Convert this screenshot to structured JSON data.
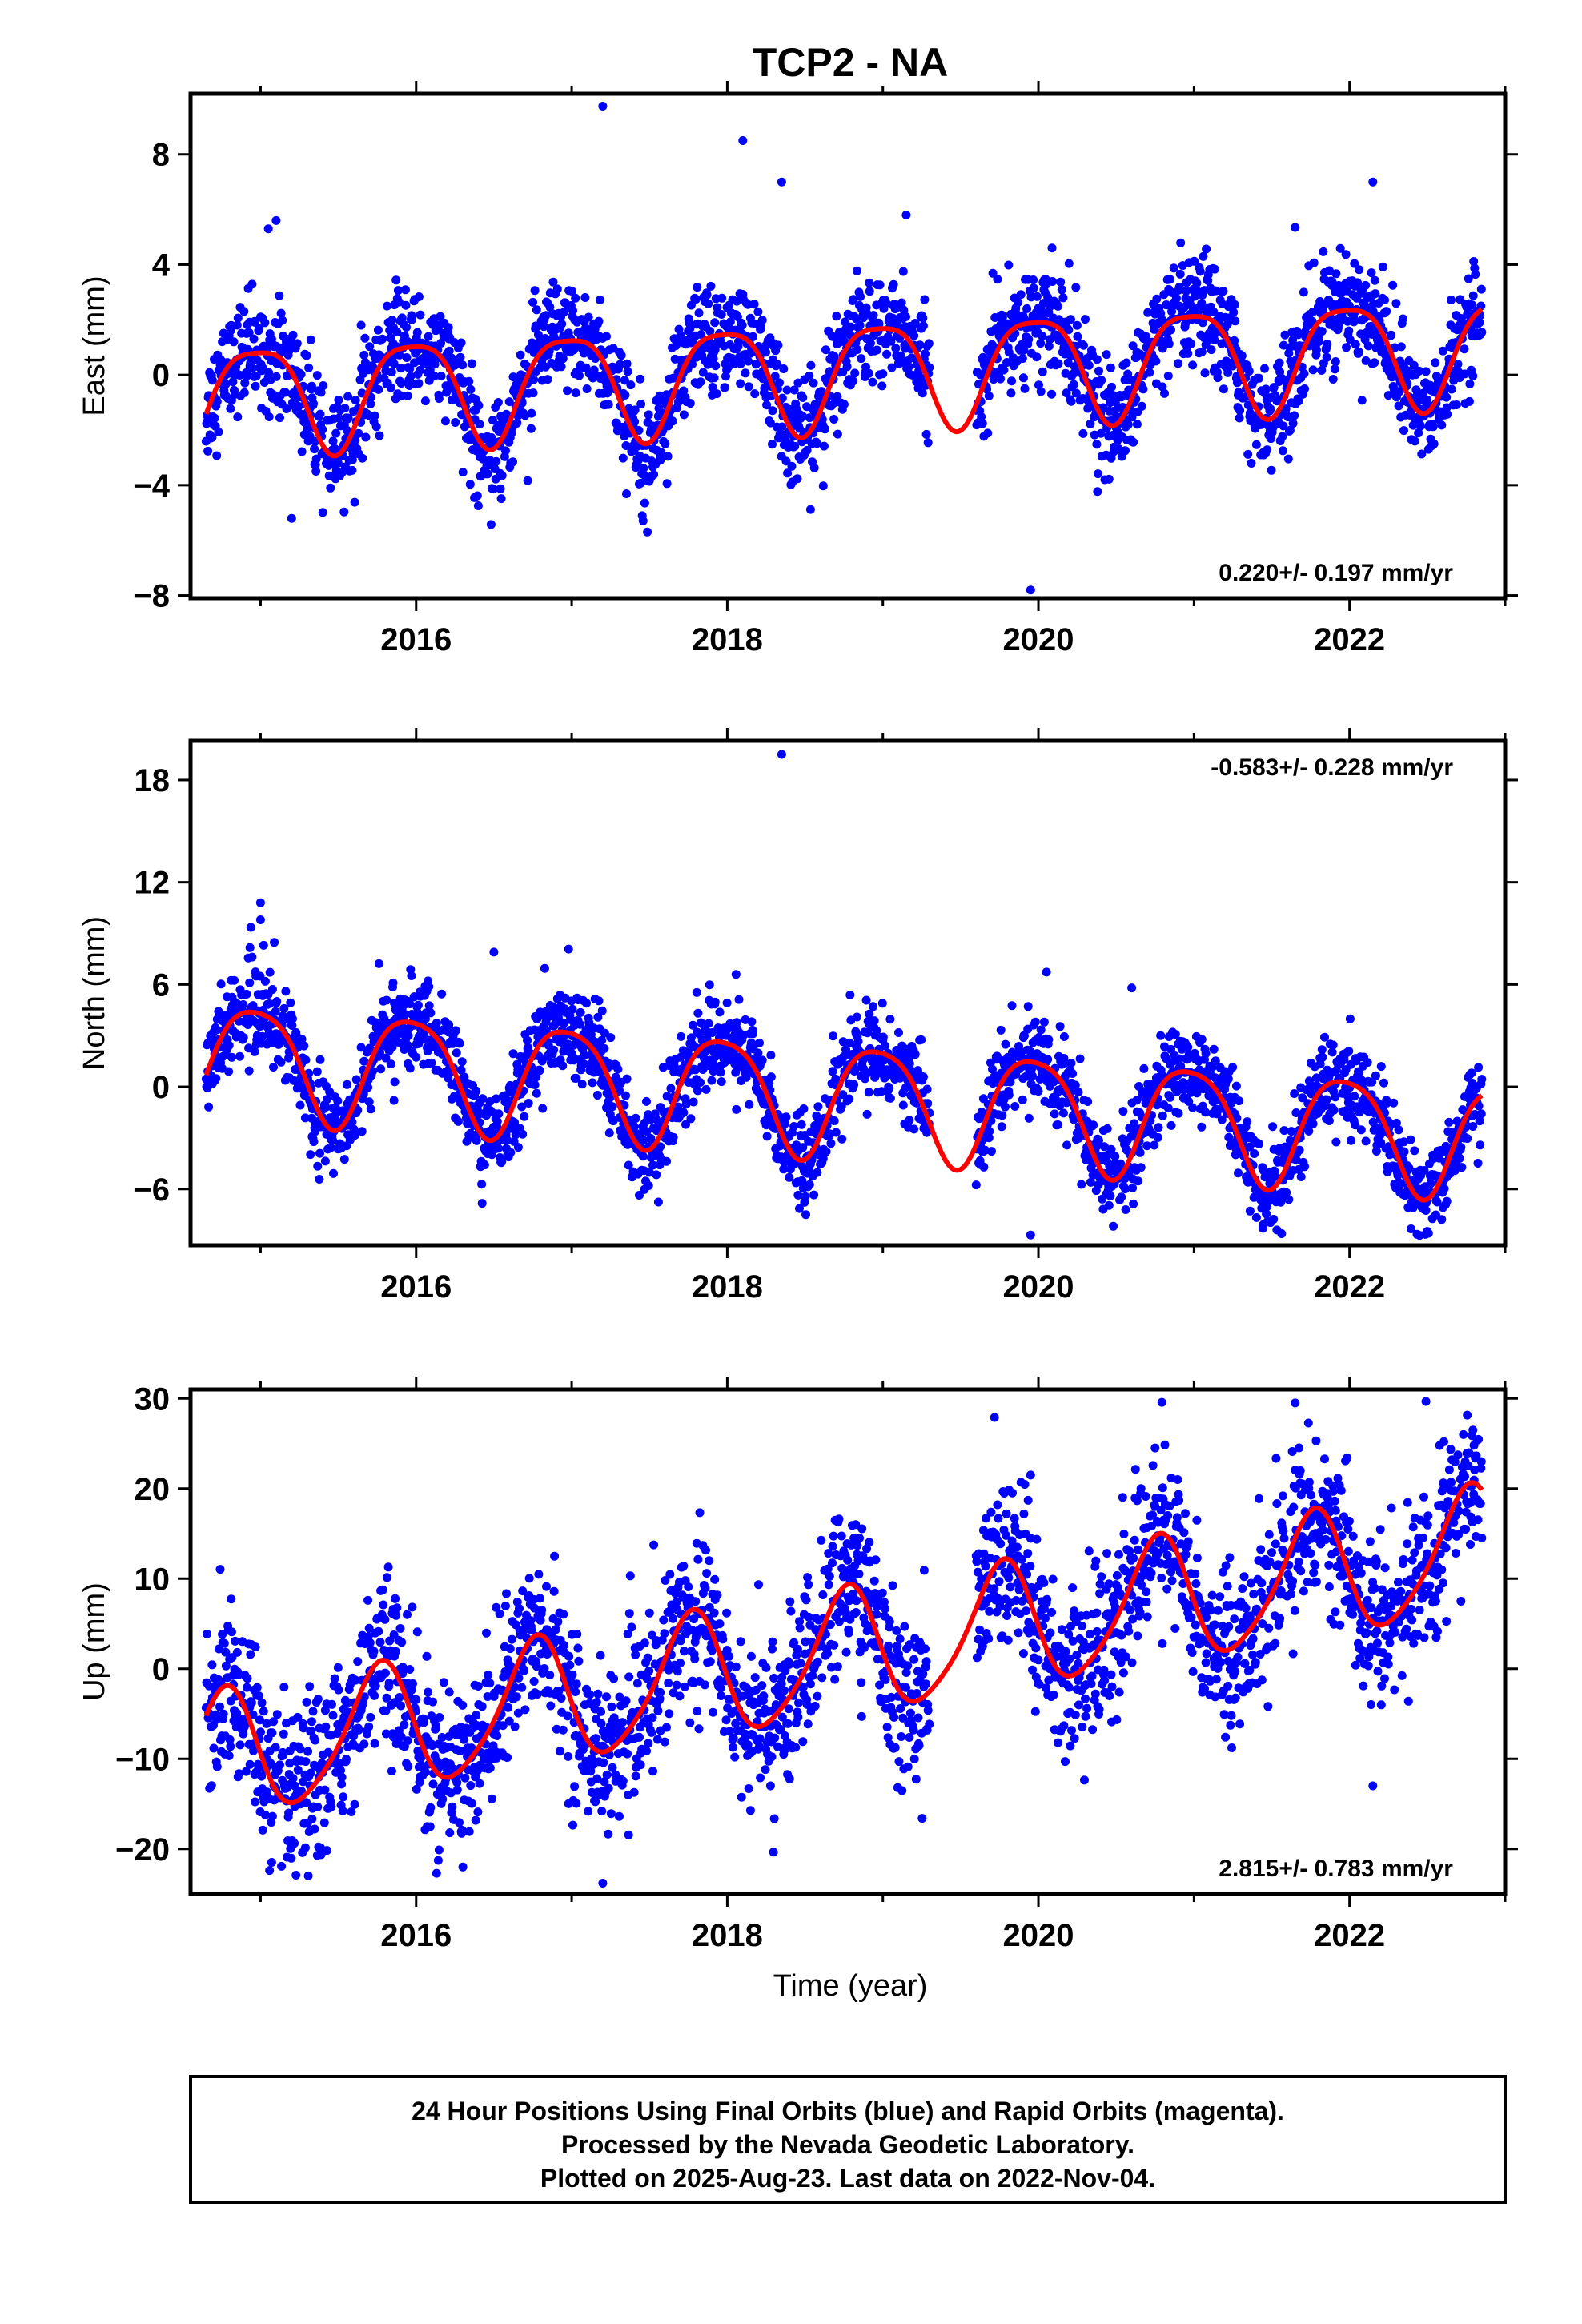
{
  "title": "TCP2 - NA",
  "xlabel": "Time (year)",
  "caption": [
    "24 Hour Positions Using Final Orbits (blue) and Rapid Orbits (magenta).",
    "Processed by the Nevada Geodetic Laboratory.",
    "Plotted on 2025-Aug-23. Last data on 2022-Nov-04."
  ],
  "colors": {
    "final_orbits": "#0000ff",
    "fit": "#ff0000"
  },
  "chart_data": [
    {
      "type": "scatter",
      "component": "East",
      "ylabel": "East (mm)",
      "xlim": [
        2014.55,
        2023.0
      ],
      "ylim": [
        -8.1,
        10.2
      ],
      "xticks": [
        2016,
        2018,
        2020,
        2022
      ],
      "yticks": [
        -8,
        -4,
        0,
        4,
        8
      ],
      "rate_text": "0.220+/- 0.197 mm/yr",
      "rate_position": "bottom-right",
      "data_start": 2014.65,
      "data_end": 2022.85,
      "gap": [
        2019.3,
        2019.6
      ],
      "model": {
        "offset": -0.77,
        "rate": 0.22,
        "annual_sin": 1.7,
        "annual_cos": -0.9,
        "semiannual_sin": 0.35,
        "semiannual_cos": 0.25
      },
      "noise_sd": 0.95,
      "outliers": [
        [
          2017.2,
          9.75
        ],
        [
          2018.1,
          8.5
        ],
        [
          2018.35,
          7.0
        ],
        [
          2019.15,
          5.8
        ],
        [
          2021.65,
          5.35
        ],
        [
          2022.15,
          7.0
        ],
        [
          2019.95,
          -7.8
        ],
        [
          2015.2,
          -5.2
        ],
        [
          2015.1,
          5.6
        ],
        [
          2015.05,
          5.3
        ]
      ]
    },
    {
      "type": "scatter",
      "component": "North",
      "ylabel": "North (mm)",
      "xlim": [
        2014.55,
        2023.0
      ],
      "ylim": [
        -9.3,
        20.3
      ],
      "xticks": [
        2016,
        2018,
        2020,
        2022
      ],
      "yticks": [
        -6,
        0,
        6,
        12,
        18
      ],
      "rate_text": "-0.583+/- 0.228 mm/yr",
      "rate_position": "top-right",
      "data_start": 2014.65,
      "data_end": 2022.85,
      "gap": [
        2019.3,
        2019.6
      ],
      "model": {
        "offset": 1.8,
        "rate": -0.583,
        "annual_sin": 3.0,
        "annual_cos": -1.4,
        "semiannual_sin": 0.5,
        "semiannual_cos": 0.3
      },
      "noise_sd": 1.3,
      "outliers": [
        [
          2018.35,
          19.5
        ],
        [
          2015.0,
          10.8
        ],
        [
          2015.0,
          9.8
        ],
        [
          2015.02,
          8.3
        ],
        [
          2019.95,
          -8.7
        ],
        [
          2016.5,
          7.9
        ],
        [
          2020.6,
          5.8
        ]
      ]
    },
    {
      "type": "scatter",
      "component": "Up",
      "ylabel": "Up (mm)",
      "xlim": [
        2014.55,
        2023.0
      ],
      "ylim": [
        -25.0,
        31.0
      ],
      "xticks": [
        2016,
        2018,
        2020,
        2022
      ],
      "yticks": [
        -20,
        -10,
        0,
        10,
        20,
        30
      ],
      "rate_text": "2.815+/- 0.783 mm/yr",
      "rate_position": "bottom-right",
      "data_start": 2014.65,
      "data_end": 2022.85,
      "gap": [
        2019.3,
        2019.6
      ],
      "model": {
        "offset": -10.0,
        "rate": 2.815,
        "annual_sin": 4.3,
        "annual_cos": 5.4,
        "semiannual_sin": 0.9,
        "semiannual_cos": -0.6
      },
      "noise_sd": 4.4,
      "outliers": [
        [
          2021.65,
          29.5
        ],
        [
          2019.95,
          21.5
        ],
        [
          2022.8,
          24.8
        ],
        [
          2017.2,
          -23.8
        ],
        [
          2016.3,
          -22.0
        ],
        [
          2020.75,
          24.5
        ],
        [
          2022.15,
          -13.0
        ]
      ]
    }
  ]
}
